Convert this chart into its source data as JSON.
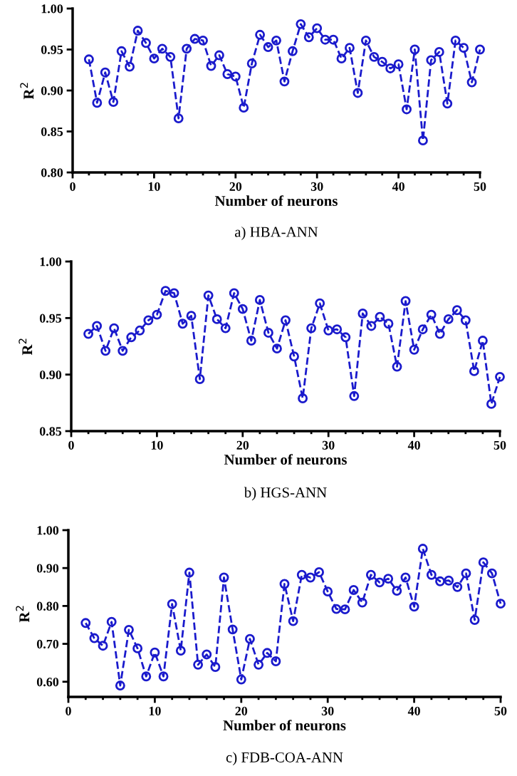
{
  "chart_data": [
    {
      "type": "line",
      "xlabel": "Number of neurons",
      "ylabel": "R$^{2}$",
      "annotations": [
        "a) HBA-ANN"
      ],
      "marker": "circle",
      "line_style": "dashed",
      "grid": false,
      "legend": false,
      "x": [
        2,
        3,
        4,
        5,
        6,
        7,
        8,
        9,
        10,
        11,
        12,
        13,
        14,
        15,
        16,
        17,
        18,
        19,
        20,
        21,
        22,
        23,
        24,
        25,
        26,
        27,
        28,
        29,
        30,
        31,
        32,
        33,
        34,
        35,
        36,
        37,
        38,
        39,
        40,
        41,
        42,
        43,
        44,
        45,
        46,
        47,
        48,
        49,
        50
      ],
      "series": [
        {
          "color": "#1a1acc",
          "values": [
            0.938,
            0.885,
            0.922,
            0.886,
            0.948,
            0.929,
            0.973,
            0.958,
            0.939,
            0.951,
            0.941,
            0.866,
            0.951,
            0.963,
            0.961,
            0.93,
            0.943,
            0.92,
            0.917,
            0.879,
            0.933,
            0.968,
            0.953,
            0.961,
            0.911,
            0.948,
            0.981,
            0.965,
            0.976,
            0.962,
            0.962,
            0.939,
            0.952,
            0.897,
            0.961,
            0.941,
            0.935,
            0.927,
            0.932,
            0.877,
            0.95,
            0.839,
            0.937,
            0.947,
            0.884,
            0.961,
            0.952,
            0.91,
            0.95
          ]
        }
      ],
      "xlim": [
        0,
        50
      ],
      "xticks": [
        0,
        10,
        20,
        30,
        40,
        50
      ],
      "ylim": [
        0.8,
        1.0
      ],
      "yticks": [
        {
          "value": 0.8,
          "label": "0.80"
        },
        {
          "value": 0.85,
          "label": "0.85"
        },
        {
          "value": 0.9,
          "label": "0.90"
        },
        {
          "value": 0.95,
          "label": "0.95"
        },
        {
          "value": 1.0,
          "label": "1.00"
        }
      ]
    },
    {
      "type": "line",
      "xlabel": "Number of neurons",
      "ylabel": "R$^{2}$",
      "annotations": [
        "b) HGS-ANN"
      ],
      "marker": "circle",
      "line_style": "dashed",
      "grid": false,
      "legend": false,
      "x": [
        2,
        3,
        4,
        5,
        6,
        7,
        8,
        9,
        10,
        11,
        12,
        13,
        14,
        15,
        16,
        17,
        18,
        19,
        20,
        21,
        22,
        23,
        24,
        25,
        26,
        27,
        28,
        29,
        30,
        31,
        32,
        33,
        34,
        35,
        36,
        37,
        38,
        39,
        40,
        41,
        42,
        43,
        44,
        45,
        46,
        47,
        48,
        49,
        50
      ],
      "series": [
        {
          "color": "#1a1acc",
          "values": [
            0.936,
            0.943,
            0.921,
            0.941,
            0.921,
            0.933,
            0.939,
            0.948,
            0.953,
            0.974,
            0.972,
            0.945,
            0.952,
            0.896,
            0.97,
            0.949,
            0.941,
            0.972,
            0.958,
            0.93,
            0.966,
            0.937,
            0.923,
            0.948,
            0.916,
            0.879,
            0.941,
            0.963,
            0.939,
            0.94,
            0.933,
            0.881,
            0.954,
            0.943,
            0.951,
            0.945,
            0.907,
            0.965,
            0.922,
            0.94,
            0.953,
            0.936,
            0.949,
            0.957,
            0.948,
            0.903,
            0.93,
            0.874,
            0.898
          ]
        }
      ],
      "xlim": [
        0,
        50
      ],
      "xticks": [
        0,
        10,
        20,
        30,
        40,
        50
      ],
      "ylim": [
        0.85,
        1.0
      ],
      "yticks": [
        {
          "value": 0.85,
          "label": "0.85"
        },
        {
          "value": 0.9,
          "label": "0.90"
        },
        {
          "value": 0.95,
          "label": "0.95"
        },
        {
          "value": 1.0,
          "label": "1.00"
        }
      ]
    },
    {
      "type": "line",
      "xlabel": "Number of neurons",
      "ylabel": "R$^{2}$",
      "annotations": [
        "c) FDB-COA-ANN"
      ],
      "marker": "circle",
      "line_style": "dashed",
      "grid": false,
      "legend": false,
      "x": [
        2,
        3,
        4,
        5,
        6,
        7,
        8,
        9,
        10,
        11,
        12,
        13,
        14,
        15,
        16,
        17,
        18,
        19,
        20,
        21,
        22,
        23,
        24,
        25,
        26,
        27,
        28,
        29,
        30,
        31,
        32,
        33,
        34,
        35,
        36,
        37,
        38,
        39,
        40,
        41,
        42,
        43,
        44,
        45,
        46,
        47,
        48,
        49,
        50
      ],
      "series": [
        {
          "color": "#1a1acc",
          "values": [
            0.755,
            0.715,
            0.695,
            0.758,
            0.59,
            0.737,
            0.688,
            0.614,
            0.677,
            0.614,
            0.805,
            0.682,
            0.888,
            0.645,
            0.672,
            0.639,
            0.875,
            0.738,
            0.606,
            0.713,
            0.645,
            0.676,
            0.654,
            0.858,
            0.76,
            0.882,
            0.875,
            0.889,
            0.838,
            0.792,
            0.791,
            0.842,
            0.809,
            0.882,
            0.862,
            0.872,
            0.84,
            0.875,
            0.798,
            0.951,
            0.882,
            0.865,
            0.867,
            0.85,
            0.886,
            0.763,
            0.915,
            0.886,
            0.806
          ]
        }
      ],
      "xlim": [
        0,
        50
      ],
      "xticks": [
        0,
        10,
        20,
        30,
        40,
        50
      ],
      "ylim": [
        0.56,
        1.0
      ],
      "yticks": [
        {
          "value": 0.6,
          "label": "0.60"
        },
        {
          "value": 0.7,
          "label": "0.70"
        },
        {
          "value": 0.8,
          "label": "0.80"
        },
        {
          "value": 0.9,
          "label": "0.90"
        },
        {
          "value": 1.0,
          "label": "1.00"
        }
      ]
    }
  ]
}
